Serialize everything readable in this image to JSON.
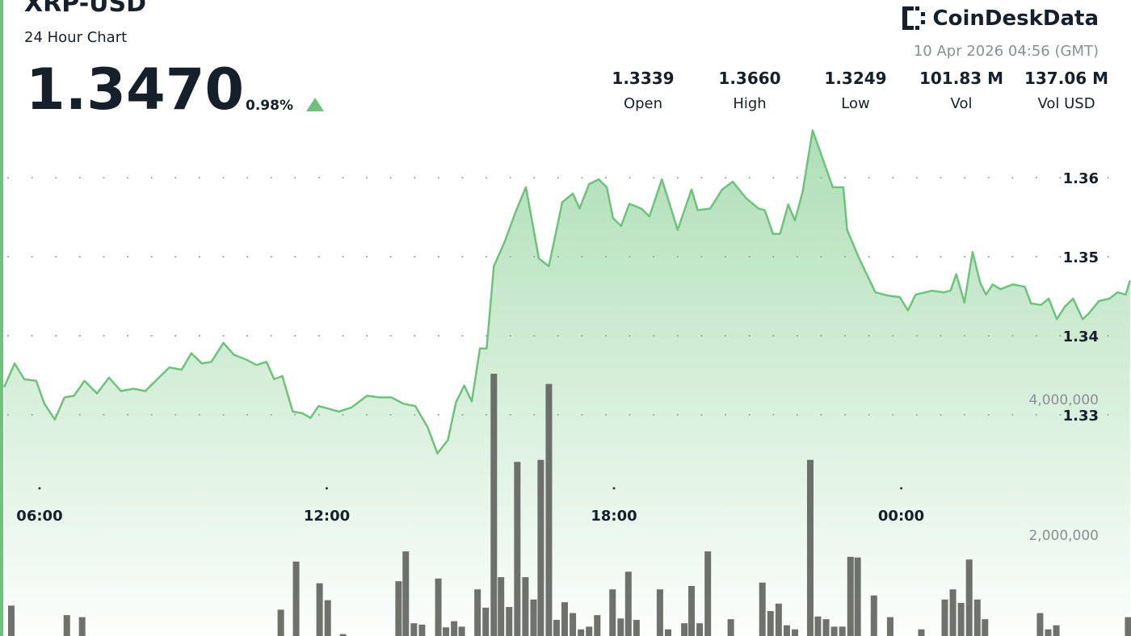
{
  "header": {
    "title": "XRP-USD",
    "subtitle": "24 Hour Chart",
    "price": "1.3470",
    "change": "0.98%",
    "brand": "CoinDeskData",
    "timestamp": "10 Apr 2026 04:56 (GMT)",
    "stats": [
      {
        "value": "1.3339",
        "label": "Open"
      },
      {
        "value": "1.3660",
        "label": "High"
      },
      {
        "value": "1.3249",
        "label": "Low"
      },
      {
        "value": "101.83 M",
        "label": "Vol"
      },
      {
        "value": "137.06 M",
        "label": "Vol USD"
      }
    ]
  },
  "chart_data": {
    "type": "line",
    "x": [
      5.26,
      5.48,
      5.68,
      5.93,
      6.1,
      6.32,
      6.52,
      6.72,
      6.94,
      7.2,
      7.45,
      7.7,
      7.96,
      8.21,
      8.46,
      8.71,
      8.97,
      9.17,
      9.39,
      9.59,
      9.84,
      10.06,
      10.31,
      10.53,
      10.74,
      10.9,
      11.07,
      11.29,
      11.49,
      11.66,
      11.83,
      12.08,
      12.25,
      12.51,
      12.84,
      13.1,
      13.35,
      13.6,
      13.85,
      14.11,
      14.31,
      14.53,
      14.7,
      14.87,
      15.03,
      15.2,
      15.34,
      15.49,
      15.71,
      15.96,
      16.16,
      16.43,
      16.64,
      16.92,
      17.14,
      17.28,
      17.48,
      17.68,
      17.85,
      17.98,
      18.15,
      18.32,
      18.57,
      18.74,
      19.0,
      19.16,
      19.33,
      19.62,
      19.75,
      20.01,
      20.26,
      20.48,
      20.76,
      21.02,
      21.15,
      21.32,
      21.47,
      21.64,
      21.78,
      21.94,
      22.15,
      22.37,
      22.57,
      22.79,
      22.87,
      23.12,
      23.46,
      23.71,
      23.97,
      24.14,
      24.3,
      24.64,
      24.89,
      25.03,
      25.15,
      25.32,
      25.49,
      25.65,
      25.77,
      25.91,
      26.07,
      26.33,
      26.58,
      26.71,
      26.92,
      27.08,
      27.25,
      27.42,
      27.59,
      27.79,
      27.93,
      28.13,
      28.35,
      28.52,
      28.69,
      28.78
    ],
    "series": [
      {
        "color": "#6cc47a",
        "values": [
          1.3335,
          1.3365,
          1.3345,
          1.3343,
          1.3314,
          1.3294,
          1.3322,
          1.3324,
          1.3343,
          1.3327,
          1.3347,
          1.333,
          1.3333,
          1.333,
          1.3345,
          1.336,
          1.3357,
          1.3378,
          1.3365,
          1.3367,
          1.3391,
          1.3376,
          1.337,
          1.3363,
          1.3367,
          1.3345,
          1.3349,
          1.3304,
          1.3302,
          1.3296,
          1.3311,
          1.3307,
          1.3304,
          1.3309,
          1.3324,
          1.3322,
          1.3322,
          1.3314,
          1.3311,
          1.3284,
          1.3251,
          1.3268,
          1.3316,
          1.3337,
          1.3317,
          1.3384,
          1.3384,
          1.3488,
          1.3518,
          1.3559,
          1.3588,
          1.3498,
          1.3488,
          1.3569,
          1.358,
          1.3561,
          1.3592,
          1.3598,
          1.3588,
          1.3549,
          1.3539,
          1.3567,
          1.3561,
          1.3551,
          1.3598,
          1.3567,
          1.3534,
          1.3585,
          1.3559,
          1.3561,
          1.3585,
          1.3595,
          1.3574,
          1.3561,
          1.3559,
          1.3529,
          1.3529,
          1.3566,
          1.3546,
          1.3582,
          1.366,
          1.3622,
          1.3588,
          1.3588,
          1.3534,
          1.3498,
          1.3455,
          1.3451,
          1.3449,
          1.3432,
          1.3452,
          1.3457,
          1.3455,
          1.3457,
          1.3478,
          1.3442,
          1.3506,
          1.3467,
          1.3452,
          1.3465,
          1.3459,
          1.3465,
          1.3462,
          1.3441,
          1.3439,
          1.3447,
          1.3421,
          1.3437,
          1.3447,
          1.3421,
          1.3429,
          1.3444,
          1.3447,
          1.3455,
          1.3452,
          1.347
        ]
      }
    ],
    "volume": {
      "type": "bar",
      "axis": "y2",
      "color": "#5e625c",
      "x": [
        5.41,
        6.57,
        6.89,
        11.04,
        11.36,
        11.85,
        12.02,
        12.34,
        13.5,
        13.65,
        13.82,
        13.99,
        14.33,
        14.49,
        14.66,
        14.82,
        15.15,
        15.32,
        15.49,
        15.64,
        15.81,
        15.98,
        16.15,
        16.32,
        16.47,
        16.64,
        16.8,
        16.97,
        17.14,
        17.31,
        17.48,
        17.65,
        17.97,
        18.14,
        18.3,
        18.47,
        18.96,
        19.13,
        19.47,
        19.62,
        19.79,
        19.96,
        20.44,
        21.1,
        21.27,
        21.44,
        21.61,
        21.78,
        22.1,
        22.26,
        22.43,
        22.6,
        22.77,
        22.94,
        23.09,
        23.43,
        23.77,
        24.42,
        24.91,
        25.08,
        25.25,
        25.42,
        25.59,
        25.75,
        26.9,
        27.07,
        27.24,
        28.74
      ],
      "values": [
        960000,
        820000,
        790000,
        900000,
        1610000,
        1290000,
        1040000,
        540000,
        1320000,
        1760000,
        700000,
        680000,
        1360000,
        640000,
        730000,
        650000,
        1200000,
        930000,
        4380000,
        1380000,
        940000,
        3080000,
        1380000,
        1050000,
        3110000,
        4230000,
        750000,
        1010000,
        850000,
        610000,
        650000,
        820000,
        1200000,
        770000,
        1460000,
        750000,
        1200000,
        610000,
        700000,
        1250000,
        700000,
        1760000,
        760000,
        1300000,
        880000,
        990000,
        670000,
        610000,
        3110000,
        800000,
        760000,
        650000,
        650000,
        1680000,
        1670000,
        1110000,
        790000,
        610000,
        1050000,
        1200000,
        1000000,
        1640000,
        1050000,
        760000,
        850000,
        610000,
        670000,
        790000
      ]
    },
    "xlim": [
      5.174,
      28.8
    ],
    "xticks": [
      {
        "value": 6,
        "label": "06:00"
      },
      {
        "value": 12,
        "label": "12:00"
      },
      {
        "value": 18,
        "label": "18:00"
      },
      {
        "value": 24,
        "label": "00:00"
      }
    ],
    "ylim": [
      1.302,
      1.3825
    ],
    "yticks": [
      1.33,
      1.34,
      1.35,
      1.36
    ],
    "y2lim": [
      512000,
      9893000
    ],
    "y2ticks": [
      {
        "value": 2000000,
        "label": "2,000,000"
      },
      {
        "value": 4000000,
        "label": "4,000,000"
      }
    ],
    "grid": true
  }
}
